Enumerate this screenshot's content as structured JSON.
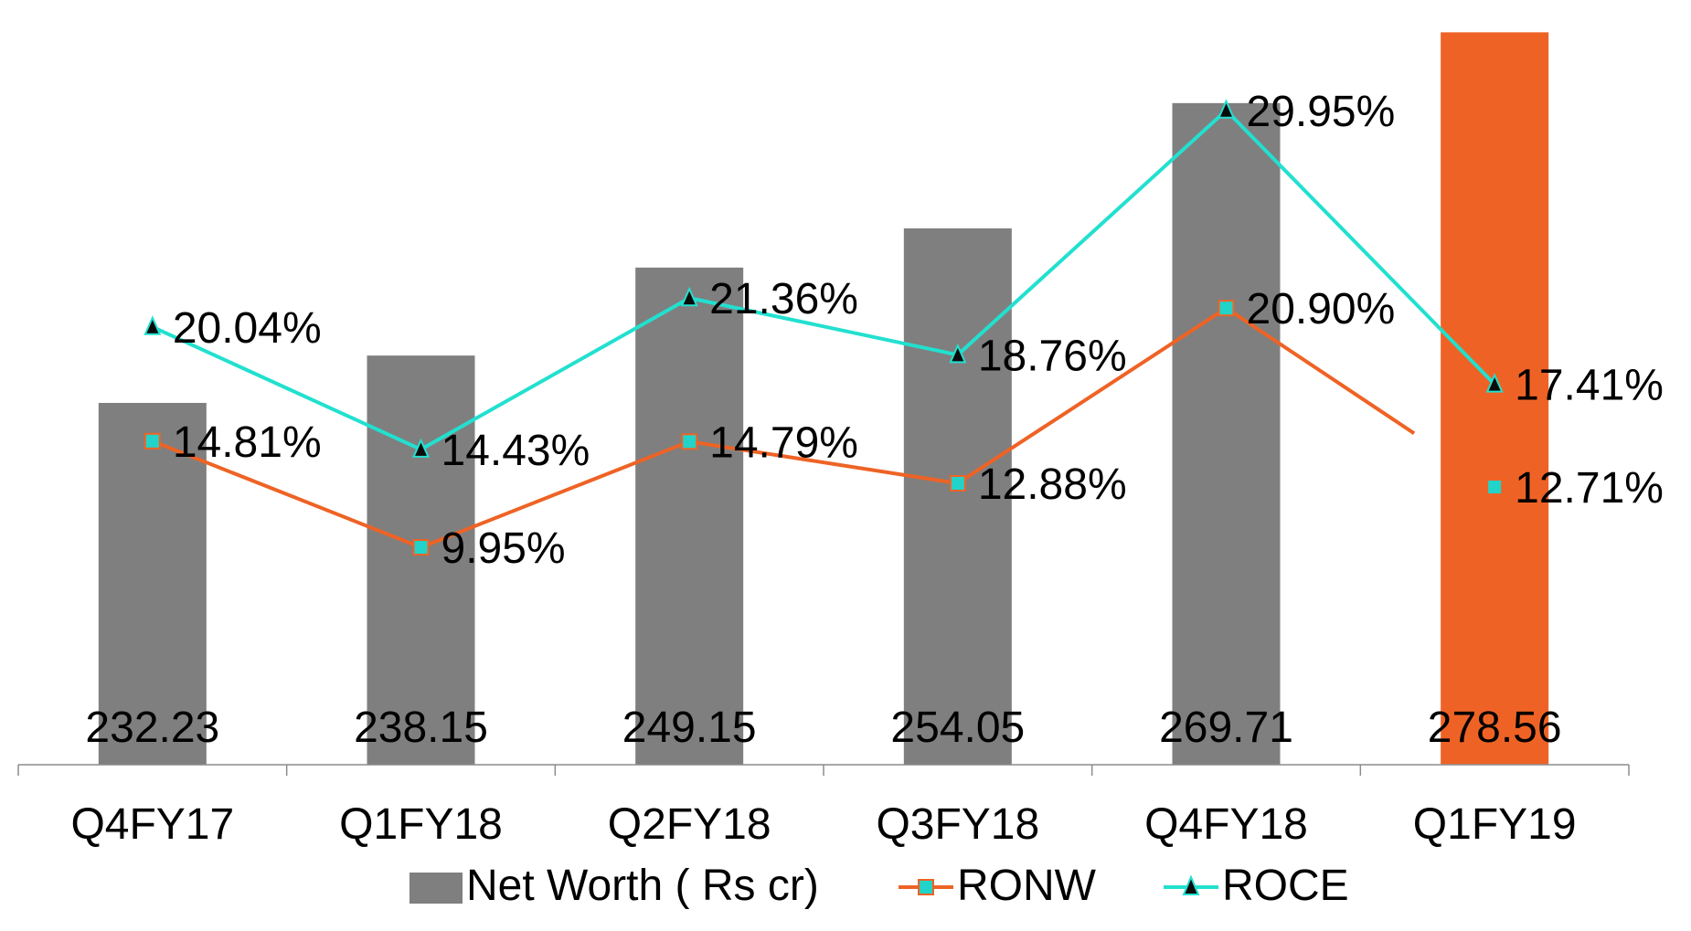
{
  "chart_data": {
    "type": "bar",
    "title": "",
    "xlabel": "",
    "ylabel": "",
    "categories": [
      "Q4FY17",
      "Q1FY18",
      "Q2FY18",
      "Q3FY18",
      "Q4FY18",
      "Q1FY19"
    ],
    "bar_series": {
      "name": "Net Worth ( Rs cr)",
      "values": [
        232.23,
        238.15,
        249.15,
        254.05,
        269.71,
        278.56
      ],
      "value_labels": [
        "232.23",
        "238.15",
        "249.15",
        "254.05",
        "269.71",
        "278.56"
      ],
      "ylim": [
        187,
        281
      ],
      "color": "#7f7f7f",
      "highlight_color": "#ee6325",
      "highlight_index": 5
    },
    "line_series": [
      {
        "name": "RONW",
        "values": [
          14.81,
          9.95,
          14.79,
          12.88,
          20.9,
          12.71
        ],
        "value_labels": [
          "14.81%",
          "9.95%",
          "14.79%",
          "12.88%",
          "20.90%",
          "12.71%"
        ],
        "line_color": "#ee6325",
        "marker": "square",
        "marker_fill": "#22d3c9",
        "marker_stroke": "#ee6325",
        "line_segments_drawn": 4
      },
      {
        "name": "ROCE",
        "values": [
          20.04,
          14.43,
          21.36,
          18.76,
          29.95,
          17.41
        ],
        "value_labels": [
          "20.04%",
          "14.43%",
          "21.36%",
          "18.76%",
          "29.95%",
          "17.41%"
        ],
        "line_color": "#22e0cf",
        "marker": "triangle",
        "marker_fill": "#0a0a0a",
        "marker_stroke": "#22e0cf",
        "line_segments_drawn": 5
      }
    ],
    "line_ylim": [
      0,
      35
    ],
    "grid": false,
    "legend_position": "bottom"
  }
}
